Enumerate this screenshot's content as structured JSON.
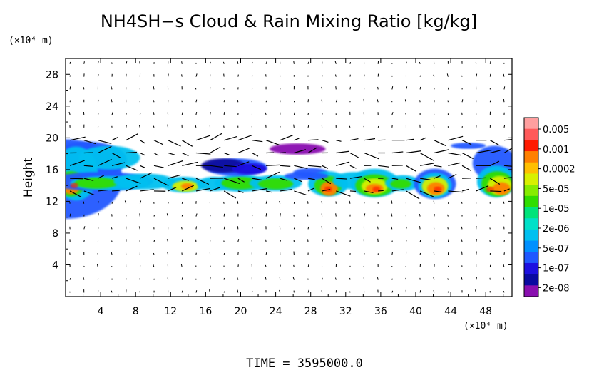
{
  "chart_data": {
    "type": "heatmap",
    "title": "NH4SH−s Cloud & Rain Mixing Ratio [kg/kg]",
    "x_unit": "(×10⁴ m)",
    "y_unit": "(×10⁴ m)",
    "ylabel": "Height",
    "xlabel": "",
    "xlim": [
      0,
      51
    ],
    "ylim": [
      0,
      30
    ],
    "x_ticks": [
      "4",
      "8",
      "12",
      "16",
      "20",
      "24",
      "28",
      "32",
      "36",
      "40",
      "44",
      "48"
    ],
    "y_ticks": [
      "4",
      "8",
      "12",
      "16",
      "20",
      "24",
      "28"
    ],
    "footer": "TIME = 3595000.0",
    "colorbar": {
      "labels": [
        "0.005",
        "0.001",
        "0.0002",
        "5e-05",
        "1e-05",
        "2e-06",
        "5e-07",
        "1e-07",
        "2e-08"
      ],
      "colors": [
        "#ff9f9f",
        "#ff5a5a",
        "#ff1a00",
        "#ff8000",
        "#ffbf00",
        "#d8f000",
        "#86ec00",
        "#30dd00",
        "#00e37a",
        "#00e0c8",
        "#00c0f0",
        "#0090ff",
        "#2058ff",
        "#1d10e0",
        "#0a0aa0",
        "#8a0fb0"
      ]
    },
    "regions": [
      {
        "x": [
          0,
          6
        ],
        "y": [
          12,
          19.5
        ],
        "level": "1e-07"
      },
      {
        "x": [
          0,
          2
        ],
        "y": [
          13,
          15
        ],
        "level": "0.0002"
      },
      {
        "x": [
          13,
          15
        ],
        "y": [
          13,
          15
        ],
        "level": "5e-05"
      },
      {
        "x": [
          16,
          23
        ],
        "y": [
          15,
          17
        ],
        "level": "1e-07"
      },
      {
        "x": [
          22,
          30
        ],
        "y": [
          17.5,
          19
        ],
        "level": "2e-08"
      },
      {
        "x": [
          29,
          31
        ],
        "y": [
          12.5,
          15
        ],
        "level": "0.0002"
      },
      {
        "x": [
          34,
          37
        ],
        "y": [
          12.5,
          15
        ],
        "level": "0.0002"
      },
      {
        "x": [
          41,
          44
        ],
        "y": [
          12.5,
          15.5
        ],
        "level": "0.0002"
      },
      {
        "x": [
          46,
          51
        ],
        "y": [
          12.5,
          19
        ],
        "level": "0.0002"
      }
    ],
    "vector_field": true
  }
}
